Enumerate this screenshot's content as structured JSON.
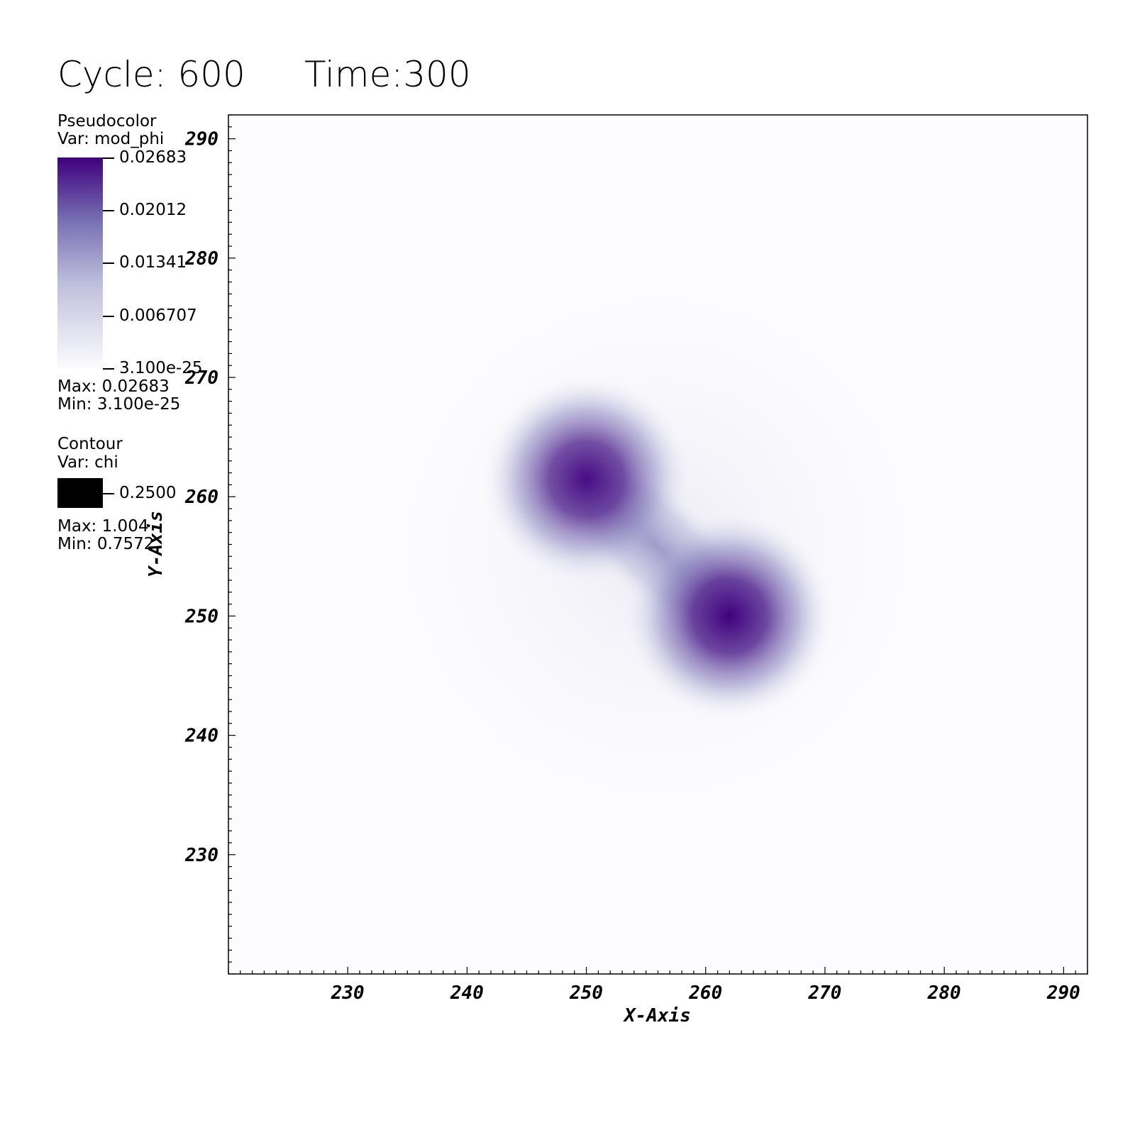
{
  "header": {
    "cycle_label": "Cycle: 600",
    "time_label": "Time:300"
  },
  "legend": {
    "pseudocolor": {
      "title": "Pseudocolor",
      "var": "Var: mod_phi",
      "ticks": [
        "0.02683",
        "0.02012",
        "0.01341",
        "0.006707",
        "3.100e-25"
      ],
      "max": "Max:  0.02683",
      "min": "Min:  3.100e-25",
      "color_low": "#fcfcfe",
      "color_high": "#3f007d"
    },
    "contour": {
      "title": "Contour",
      "var": "Var: chi",
      "level": "0.2500",
      "max": "Max:  1.004",
      "min": "Min:  0.7572",
      "color": "#000000"
    }
  },
  "chart_data": {
    "type": "heatmap",
    "title": "",
    "xlabel": "X-Axis",
    "ylabel": "Y-Axis",
    "xlim": [
      220,
      292
    ],
    "ylim": [
      220,
      292
    ],
    "x_ticks": [
      "230",
      "240",
      "250",
      "260",
      "270",
      "280",
      "290"
    ],
    "y_ticks": [
      "230",
      "240",
      "250",
      "260",
      "270",
      "280",
      "290"
    ],
    "x_tick_values": [
      230,
      240,
      250,
      260,
      270,
      280,
      290
    ],
    "y_tick_values": [
      230,
      240,
      250,
      260,
      270,
      280,
      290
    ],
    "colormap": [
      "#fcfcfe",
      "#3f007d"
    ],
    "value_range": [
      0,
      0.02683
    ],
    "peaks": [
      {
        "x": 250,
        "y": 261.5,
        "value": 0.0255
      },
      {
        "x": 262,
        "y": 250,
        "value": 0.02683
      }
    ]
  }
}
